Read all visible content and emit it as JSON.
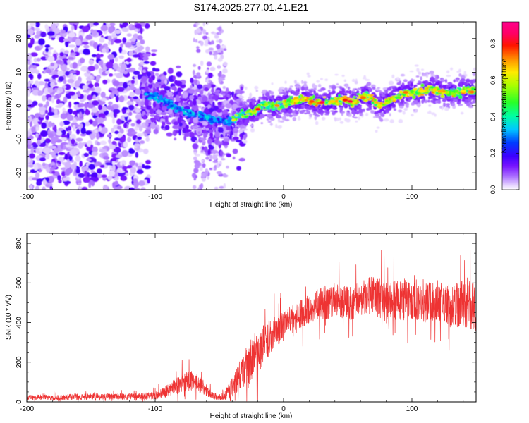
{
  "title": "S174.2025.277.01.41.E21",
  "chart_data": [
    {
      "type": "heatmap",
      "xlabel": "Height of straight line (km)",
      "ylabel": "Frequency (Hz)",
      "xlim": [
        -200,
        150
      ],
      "ylim": [
        -25,
        25
      ],
      "xticks": [
        -200,
        -100,
        0,
        100
      ],
      "yticks": [
        -20,
        -10,
        0,
        10,
        20
      ],
      "colorbar": {
        "label": "Normalized spectral amplitude",
        "range": [
          0,
          0.92
        ],
        "ticks": [
          0.0,
          0.2,
          0.4,
          0.6,
          0.8
        ],
        "colors": [
          "#ffffff",
          "#c9a8ff",
          "#8a00ff",
          "#3300ff",
          "#0066ff",
          "#00e5ff",
          "#00ff66",
          "#88ff00",
          "#ffee00",
          "#ff8800",
          "#ff0000",
          "#ff0088"
        ]
      },
      "ridge": {
        "x": [
          -105,
          -95,
          -85,
          -75,
          -65,
          -55,
          -45,
          -35,
          -25,
          -15,
          -5,
          5,
          15,
          25,
          35,
          45,
          55,
          65,
          75,
          85,
          95,
          105,
          115,
          125,
          135,
          150
        ],
        "freq": [
          3,
          2,
          0,
          -2,
          -3,
          -4,
          -5,
          -3,
          -2,
          0,
          0,
          1,
          2,
          1,
          1,
          2,
          1,
          3,
          0,
          2,
          4,
          4,
          5,
          4,
          4,
          5
        ]
      }
    },
    {
      "type": "line",
      "xlabel": "Height of straight line (km)",
      "ylabel": "SNR (10 * v/v)",
      "xlim": [
        -200,
        150
      ],
      "ylim": [
        0,
        850
      ],
      "xticks": [
        -200,
        -100,
        0,
        100
      ],
      "yticks": [
        0,
        200,
        400,
        600,
        800
      ],
      "color": "#ee3333",
      "series": [
        {
          "name": "SNR",
          "x": [
            -200,
            -175,
            -150,
            -125,
            -110,
            -100,
            -90,
            -80,
            -70,
            -62,
            -55,
            -48,
            -42,
            -36,
            -30,
            -25,
            -20,
            -15,
            -10,
            -5,
            0,
            5,
            10,
            20,
            30,
            40,
            50,
            60,
            70,
            80,
            90,
            100,
            110,
            120,
            130,
            140,
            150
          ],
          "y": [
            22,
            24,
            27,
            26,
            28,
            32,
            55,
            95,
            110,
            70,
            30,
            25,
            55,
            120,
            170,
            210,
            250,
            290,
            330,
            360,
            380,
            410,
            430,
            470,
            500,
            510,
            495,
            520,
            540,
            505,
            515,
            520,
            500,
            515,
            480,
            500,
            470
          ],
          "spread": [
            15,
            18,
            20,
            20,
            20,
            25,
            40,
            60,
            60,
            45,
            20,
            20,
            50,
            90,
            120,
            140,
            150,
            140,
            110,
            100,
            90,
            90,
            90,
            90,
            110,
            110,
            110,
            110,
            130,
            140,
            130,
            130,
            130,
            130,
            140,
            150,
            160
          ]
        }
      ]
    }
  ]
}
